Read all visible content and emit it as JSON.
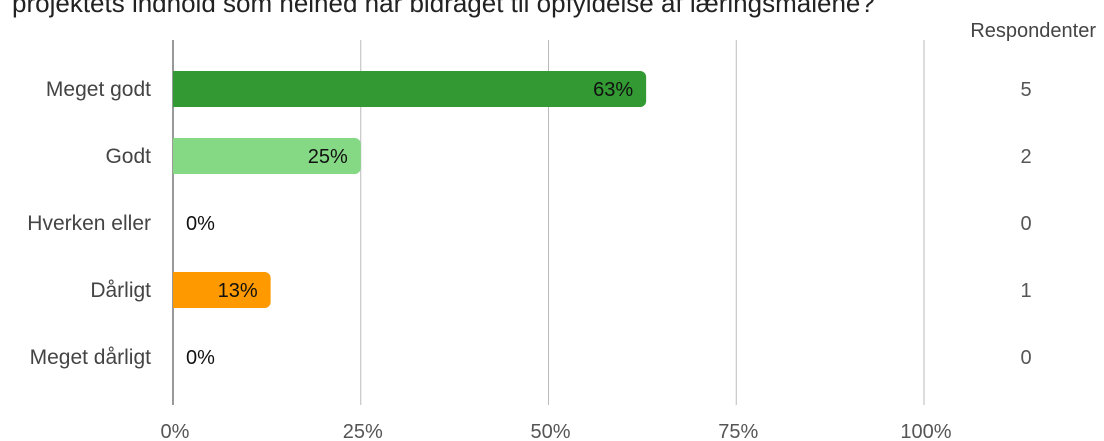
{
  "title": "projektets indhold som helhed har bidraget til opfyldelse af læringsmålene?",
  "respondents_header": "Respondenter",
  "chart_data": {
    "type": "bar",
    "orientation": "horizontal",
    "categories": [
      "Meget godt",
      "Godt",
      "Hverken eller",
      "Dårligt",
      "Meget dårligt"
    ],
    "values": [
      63,
      25,
      0,
      13,
      0
    ],
    "value_labels": [
      "63%",
      "25%",
      "0%",
      "13%",
      "0%"
    ],
    "respondents": [
      5,
      2,
      0,
      1,
      0
    ],
    "colors": [
      "#339933",
      "#85d985",
      "#bbbbbb",
      "#ff9900",
      "#cc3333"
    ],
    "xlim": [
      0,
      100
    ],
    "xticks": [
      0,
      25,
      50,
      75,
      100
    ],
    "xtick_labels": [
      "0%",
      "25%",
      "50%",
      "75%",
      "100%"
    ],
    "grid": true,
    "legend": false
  }
}
